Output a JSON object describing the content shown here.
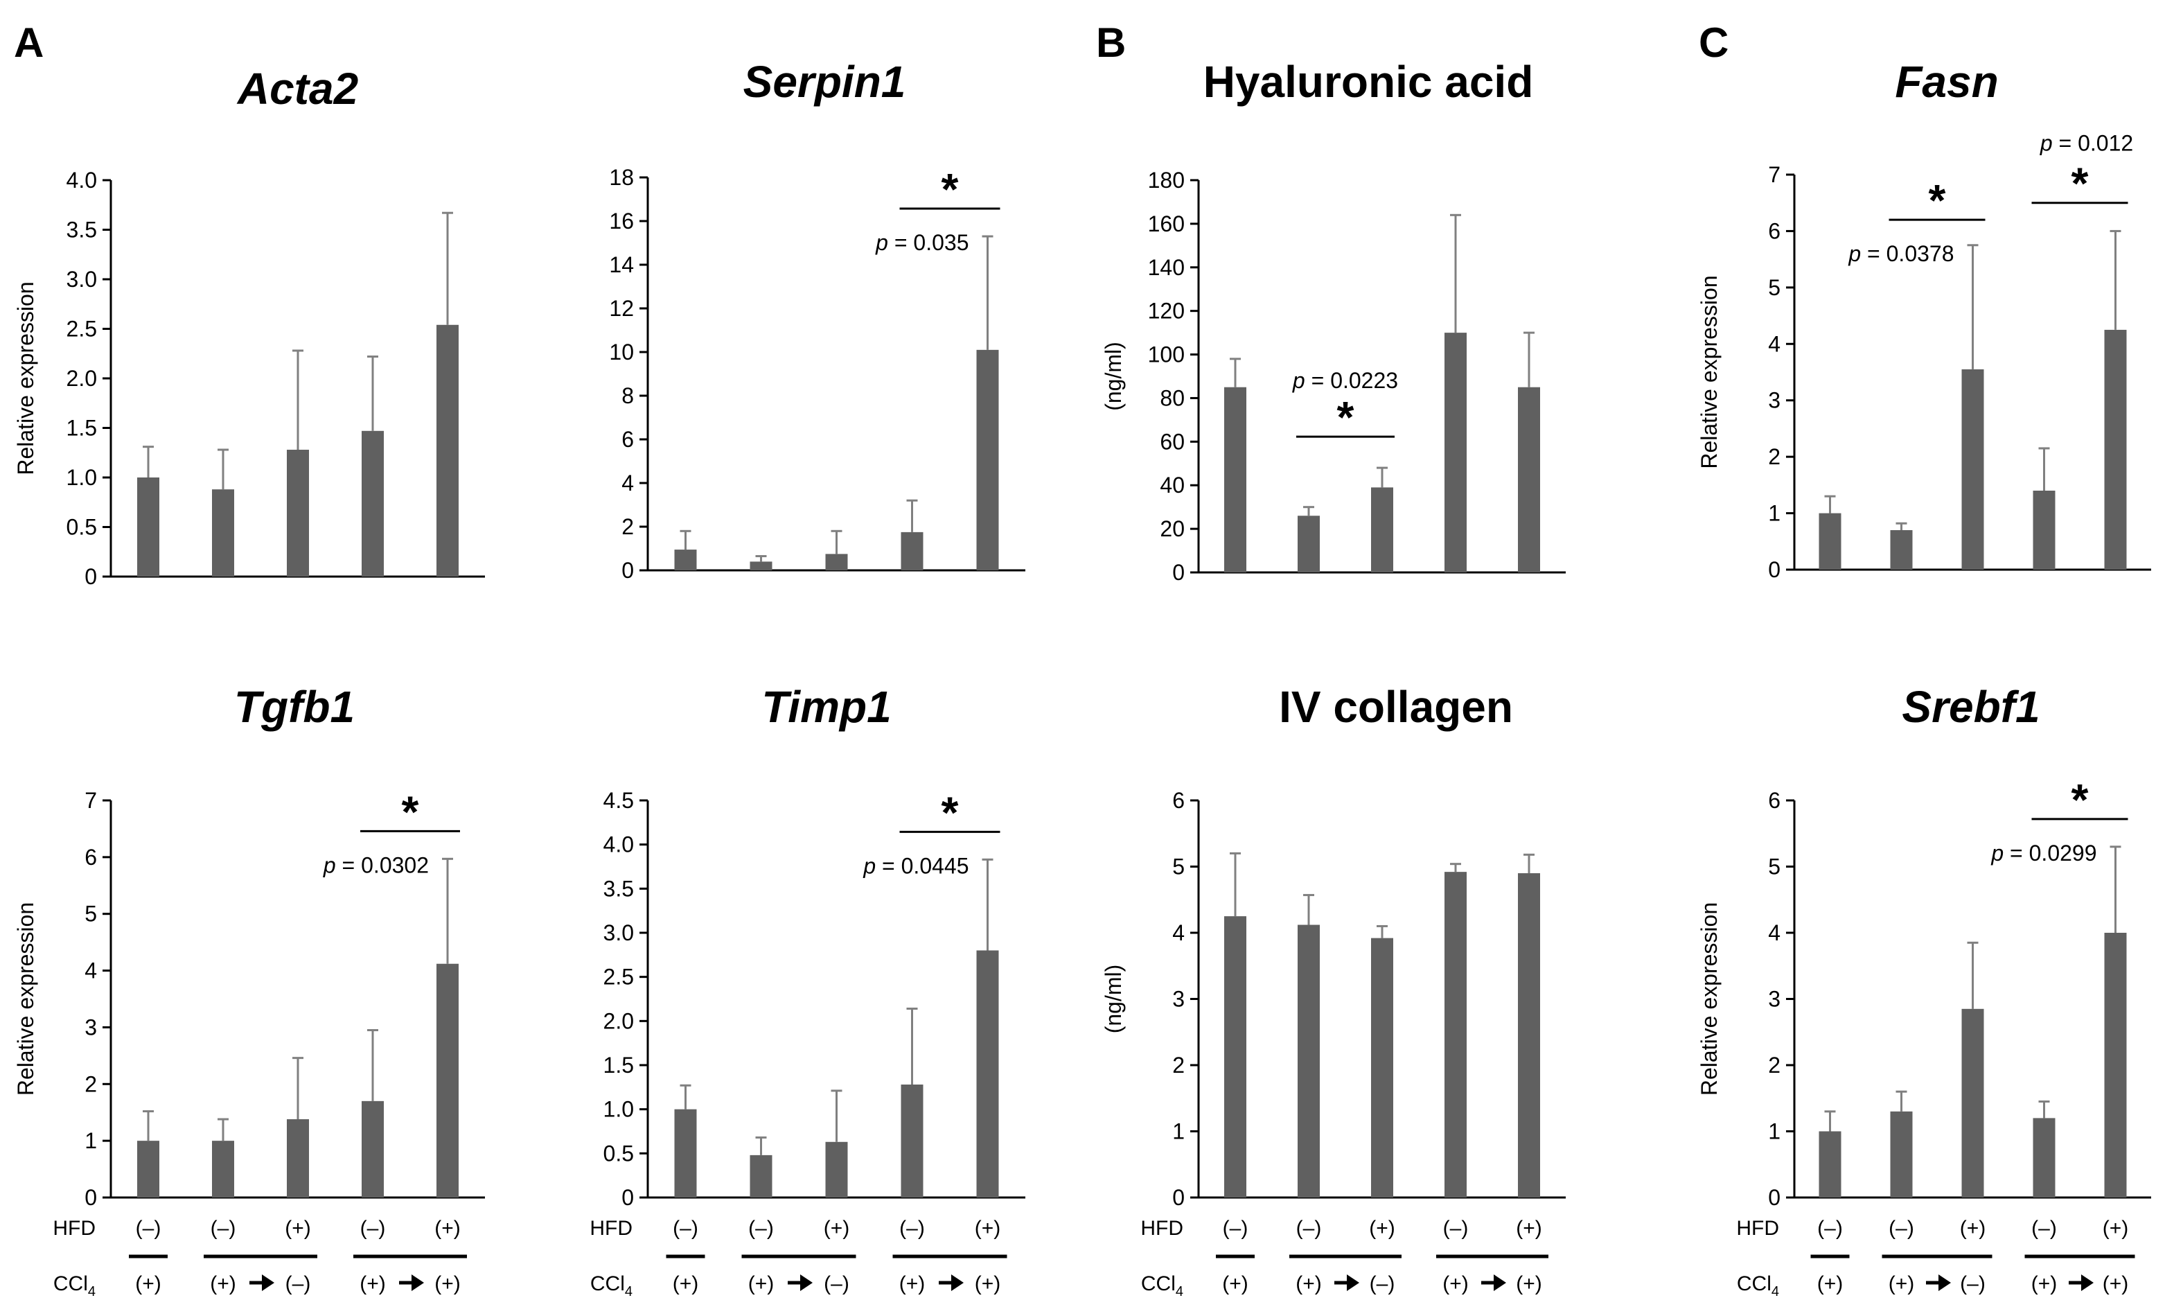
{
  "panel_letters": [
    "A",
    "B",
    "C"
  ],
  "colors": {
    "bar": "#606060",
    "axis": "#000000",
    "error": "#808080"
  },
  "group_labels": {
    "hfd_label": "HFD",
    "ccl4_label": "CCl",
    "ccl4_subscript": "4",
    "hfd_values": [
      "(–)",
      "(–)",
      "(+)",
      "(–)",
      "(+)"
    ],
    "ccl4_values": [
      "(+)",
      "(+)",
      "(–)",
      "(+)",
      "(+)"
    ],
    "arrow_icon": "right-arrow-icon"
  },
  "chart_data": [
    {
      "id": "acta2",
      "type": "bar",
      "title": "Acta2",
      "title_italic": true,
      "ylabel": "Relative expression",
      "ylim": [
        0,
        4
      ],
      "yticks": [
        "0",
        "0.5",
        "1.0",
        "1.5",
        "2.0",
        "2.5",
        "3.0",
        "3.5",
        "4.0"
      ],
      "values": [
        1.0,
        0.88,
        1.28,
        1.47,
        2.54
      ],
      "errors": [
        0.31,
        0.4,
        1.0,
        0.75,
        1.13
      ],
      "significance": []
    },
    {
      "id": "serpin1",
      "type": "bar",
      "title": "Serpin1",
      "title_italic": true,
      "ylabel": "",
      "ylim": [
        0,
        18
      ],
      "yticks": [
        "0",
        "2",
        "4",
        "6",
        "8",
        "10",
        "12",
        "14",
        "16",
        "18"
      ],
      "values": [
        0.95,
        0.4,
        0.75,
        1.75,
        10.1
      ],
      "errors": [
        0.85,
        0.25,
        1.05,
        1.45,
        5.2
      ],
      "significance": [
        {
          "from": 3,
          "to": 4,
          "star": "*",
          "p_italic": "p",
          "p_text": " = 0.035"
        }
      ]
    },
    {
      "id": "hyaluronic",
      "type": "bar",
      "title": "Hyaluronic acid",
      "title_italic": false,
      "ylabel": "(ng/ml)",
      "ylim": [
        0,
        180
      ],
      "yticks": [
        "0",
        "20",
        "40",
        "60",
        "80",
        "100",
        "120",
        "140",
        "160",
        "180"
      ],
      "values": [
        85,
        26,
        39,
        110,
        85
      ],
      "errors": [
        13,
        4,
        9,
        54,
        25
      ],
      "significance": [
        {
          "from": 1,
          "to": 2,
          "star": "*",
          "p_italic": "p",
          "p_text": " = 0.0223"
        }
      ]
    },
    {
      "id": "fasn",
      "type": "bar",
      "title": "Fasn",
      "title_italic": true,
      "ylabel": "Relative expression",
      "ylim": [
        0,
        7
      ],
      "yticks": [
        "0",
        "1",
        "2",
        "3",
        "4",
        "5",
        "6",
        "7"
      ],
      "values": [
        1.0,
        0.7,
        3.55,
        1.4,
        4.25
      ],
      "errors": [
        0.3,
        0.12,
        2.2,
        0.75,
        1.75
      ],
      "significance": [
        {
          "from": 1,
          "to": 2,
          "star": "*",
          "p_italic": "p",
          "p_text": " = 0.0378"
        },
        {
          "from": 3,
          "to": 4,
          "star": "*",
          "p_italic": "p",
          "p_text": " = 0.012"
        }
      ]
    },
    {
      "id": "tgfb1",
      "type": "bar",
      "title": "Tgfb1",
      "title_italic": true,
      "ylabel": "Relative expression",
      "ylim": [
        0,
        7
      ],
      "yticks": [
        "0",
        "1",
        "2",
        "3",
        "4",
        "5",
        "6",
        "7"
      ],
      "values": [
        1.0,
        1.0,
        1.38,
        1.7,
        4.12
      ],
      "errors": [
        0.52,
        0.38,
        1.08,
        1.25,
        1.85
      ],
      "significance": [
        {
          "from": 3,
          "to": 4,
          "star": "*",
          "p_italic": "p",
          "p_text": " = 0.0302"
        }
      ]
    },
    {
      "id": "timp1",
      "type": "bar",
      "title": "Timp1",
      "title_italic": true,
      "ylabel": "",
      "ylim": [
        0,
        4.5
      ],
      "yticks": [
        "0",
        "0.5",
        "1.0",
        "1.5",
        "2.0",
        "2.5",
        "3.0",
        "3.5",
        "4.0",
        "4.5"
      ],
      "values": [
        1.0,
        0.48,
        0.63,
        1.28,
        2.8
      ],
      "errors": [
        0.27,
        0.2,
        0.58,
        0.86,
        1.03
      ],
      "significance": [
        {
          "from": 3,
          "to": 4,
          "star": "*",
          "p_italic": "p",
          "p_text": " = 0.0445"
        }
      ]
    },
    {
      "id": "ivcollagen",
      "type": "bar",
      "title": "IV collagen",
      "title_italic": false,
      "ylabel": "(ng/ml)",
      "ylim": [
        0,
        6
      ],
      "yticks": [
        "0",
        "1",
        "2",
        "3",
        "4",
        "5",
        "6"
      ],
      "values": [
        4.25,
        4.12,
        3.92,
        4.92,
        4.9
      ],
      "errors": [
        0.95,
        0.45,
        0.18,
        0.12,
        0.28
      ],
      "significance": []
    },
    {
      "id": "srebf1",
      "type": "bar",
      "title": "Srebf1",
      "title_italic": true,
      "ylabel": "Relative expression",
      "ylim": [
        0,
        6
      ],
      "yticks": [
        "0",
        "1",
        "2",
        "3",
        "4",
        "5",
        "6"
      ],
      "values": [
        1.0,
        1.3,
        2.85,
        1.2,
        4.0
      ],
      "errors": [
        0.3,
        0.3,
        1.0,
        0.25,
        1.3
      ],
      "significance": [
        {
          "from": 3,
          "to": 4,
          "star": "*",
          "p_italic": "p",
          "p_text": " = 0.0299"
        }
      ]
    }
  ]
}
